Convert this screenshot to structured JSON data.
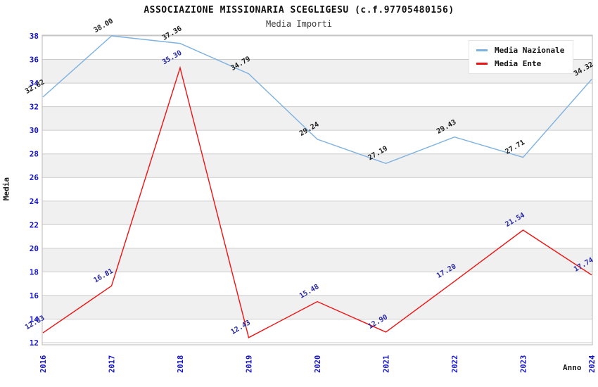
{
  "header": {
    "title": "ASSOCIAZIONE MISSIONARIA SCEGLIGESU (c.f.97705480156)",
    "subtitle": "Media Importi"
  },
  "chart_data": {
    "type": "line",
    "title": "ASSOCIAZIONE MISSIONARIA SCEGLIGESU (c.f.97705480156)",
    "subtitle": "Media Importi",
    "xlabel": "Anno",
    "ylabel": "Media",
    "categories": [
      "2016",
      "2017",
      "2018",
      "2019",
      "2020",
      "2021",
      "2022",
      "2023",
      "2024"
    ],
    "series": [
      {
        "name": "Media Nazionale",
        "color": "#7DB1E0",
        "label_color": "#1c1c1c",
        "values": [
          32.82,
          38.0,
          37.36,
          34.79,
          29.24,
          27.19,
          29.43,
          27.71,
          34.32
        ]
      },
      {
        "name": "Media Ente",
        "color": "#EE1313",
        "label_color": "#2828A3",
        "values": [
          12.83,
          16.81,
          35.3,
          12.43,
          15.48,
          12.9,
          17.2,
          21.54,
          17.74
        ]
      }
    ],
    "ylim": [
      12,
      38
    ],
    "y_tick_step": 2,
    "grid": "horizontal",
    "band_color": "#f0f0f0",
    "grid_color": "#cccccc",
    "border_color": "#b8b8b8",
    "tick_label_color": "#1313CF",
    "legend_position": "top-right"
  }
}
